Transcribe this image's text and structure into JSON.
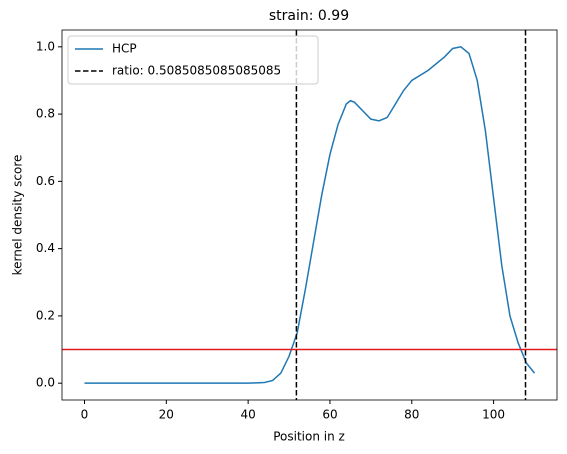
{
  "chart_data": {
    "type": "line",
    "title": "strain: 0.99",
    "xlabel": "Position in z",
    "ylabel": "kernel density score",
    "x": [
      0,
      10,
      20,
      30,
      40,
      44,
      46,
      48,
      50,
      52,
      54,
      56,
      58,
      60,
      62,
      64,
      65,
      66,
      68,
      70,
      72,
      74,
      76,
      78,
      80,
      84,
      88,
      90,
      92,
      94,
      96,
      98,
      100,
      102,
      104,
      106,
      108,
      110
    ],
    "series": [
      {
        "name": "HCP",
        "color": "#1f77b4",
        "values": [
          0,
          0,
          0,
          0,
          0,
          0.002,
          0.008,
          0.03,
          0.08,
          0.15,
          0.28,
          0.42,
          0.56,
          0.68,
          0.77,
          0.83,
          0.84,
          0.835,
          0.81,
          0.785,
          0.78,
          0.79,
          0.83,
          0.87,
          0.9,
          0.93,
          0.97,
          0.995,
          1.0,
          0.98,
          0.9,
          0.75,
          0.55,
          0.35,
          0.2,
          0.12,
          0.06,
          0.03
        ]
      }
    ],
    "vlines": {
      "name": "ratio: 0.5085085085085085",
      "color": "#000000",
      "x": [
        51.8,
        107.8
      ]
    },
    "hline": {
      "y": 0.1,
      "color": "#e31a1c"
    },
    "xlim": [
      -5.5,
      115.5
    ],
    "xticks": [
      0,
      20,
      40,
      60,
      80,
      100
    ],
    "ylim": [
      -0.05,
      1.05
    ],
    "yticks": [
      {
        "value": 0,
        "label": "0.0"
      },
      {
        "value": 0.2,
        "label": "0.2"
      },
      {
        "value": 0.4,
        "label": "0.4"
      },
      {
        "value": 0.6,
        "label": "0.6"
      },
      {
        "value": 0.8,
        "label": "0.8"
      },
      {
        "value": 1,
        "label": "1.0"
      }
    ],
    "legend": "upper left"
  }
}
